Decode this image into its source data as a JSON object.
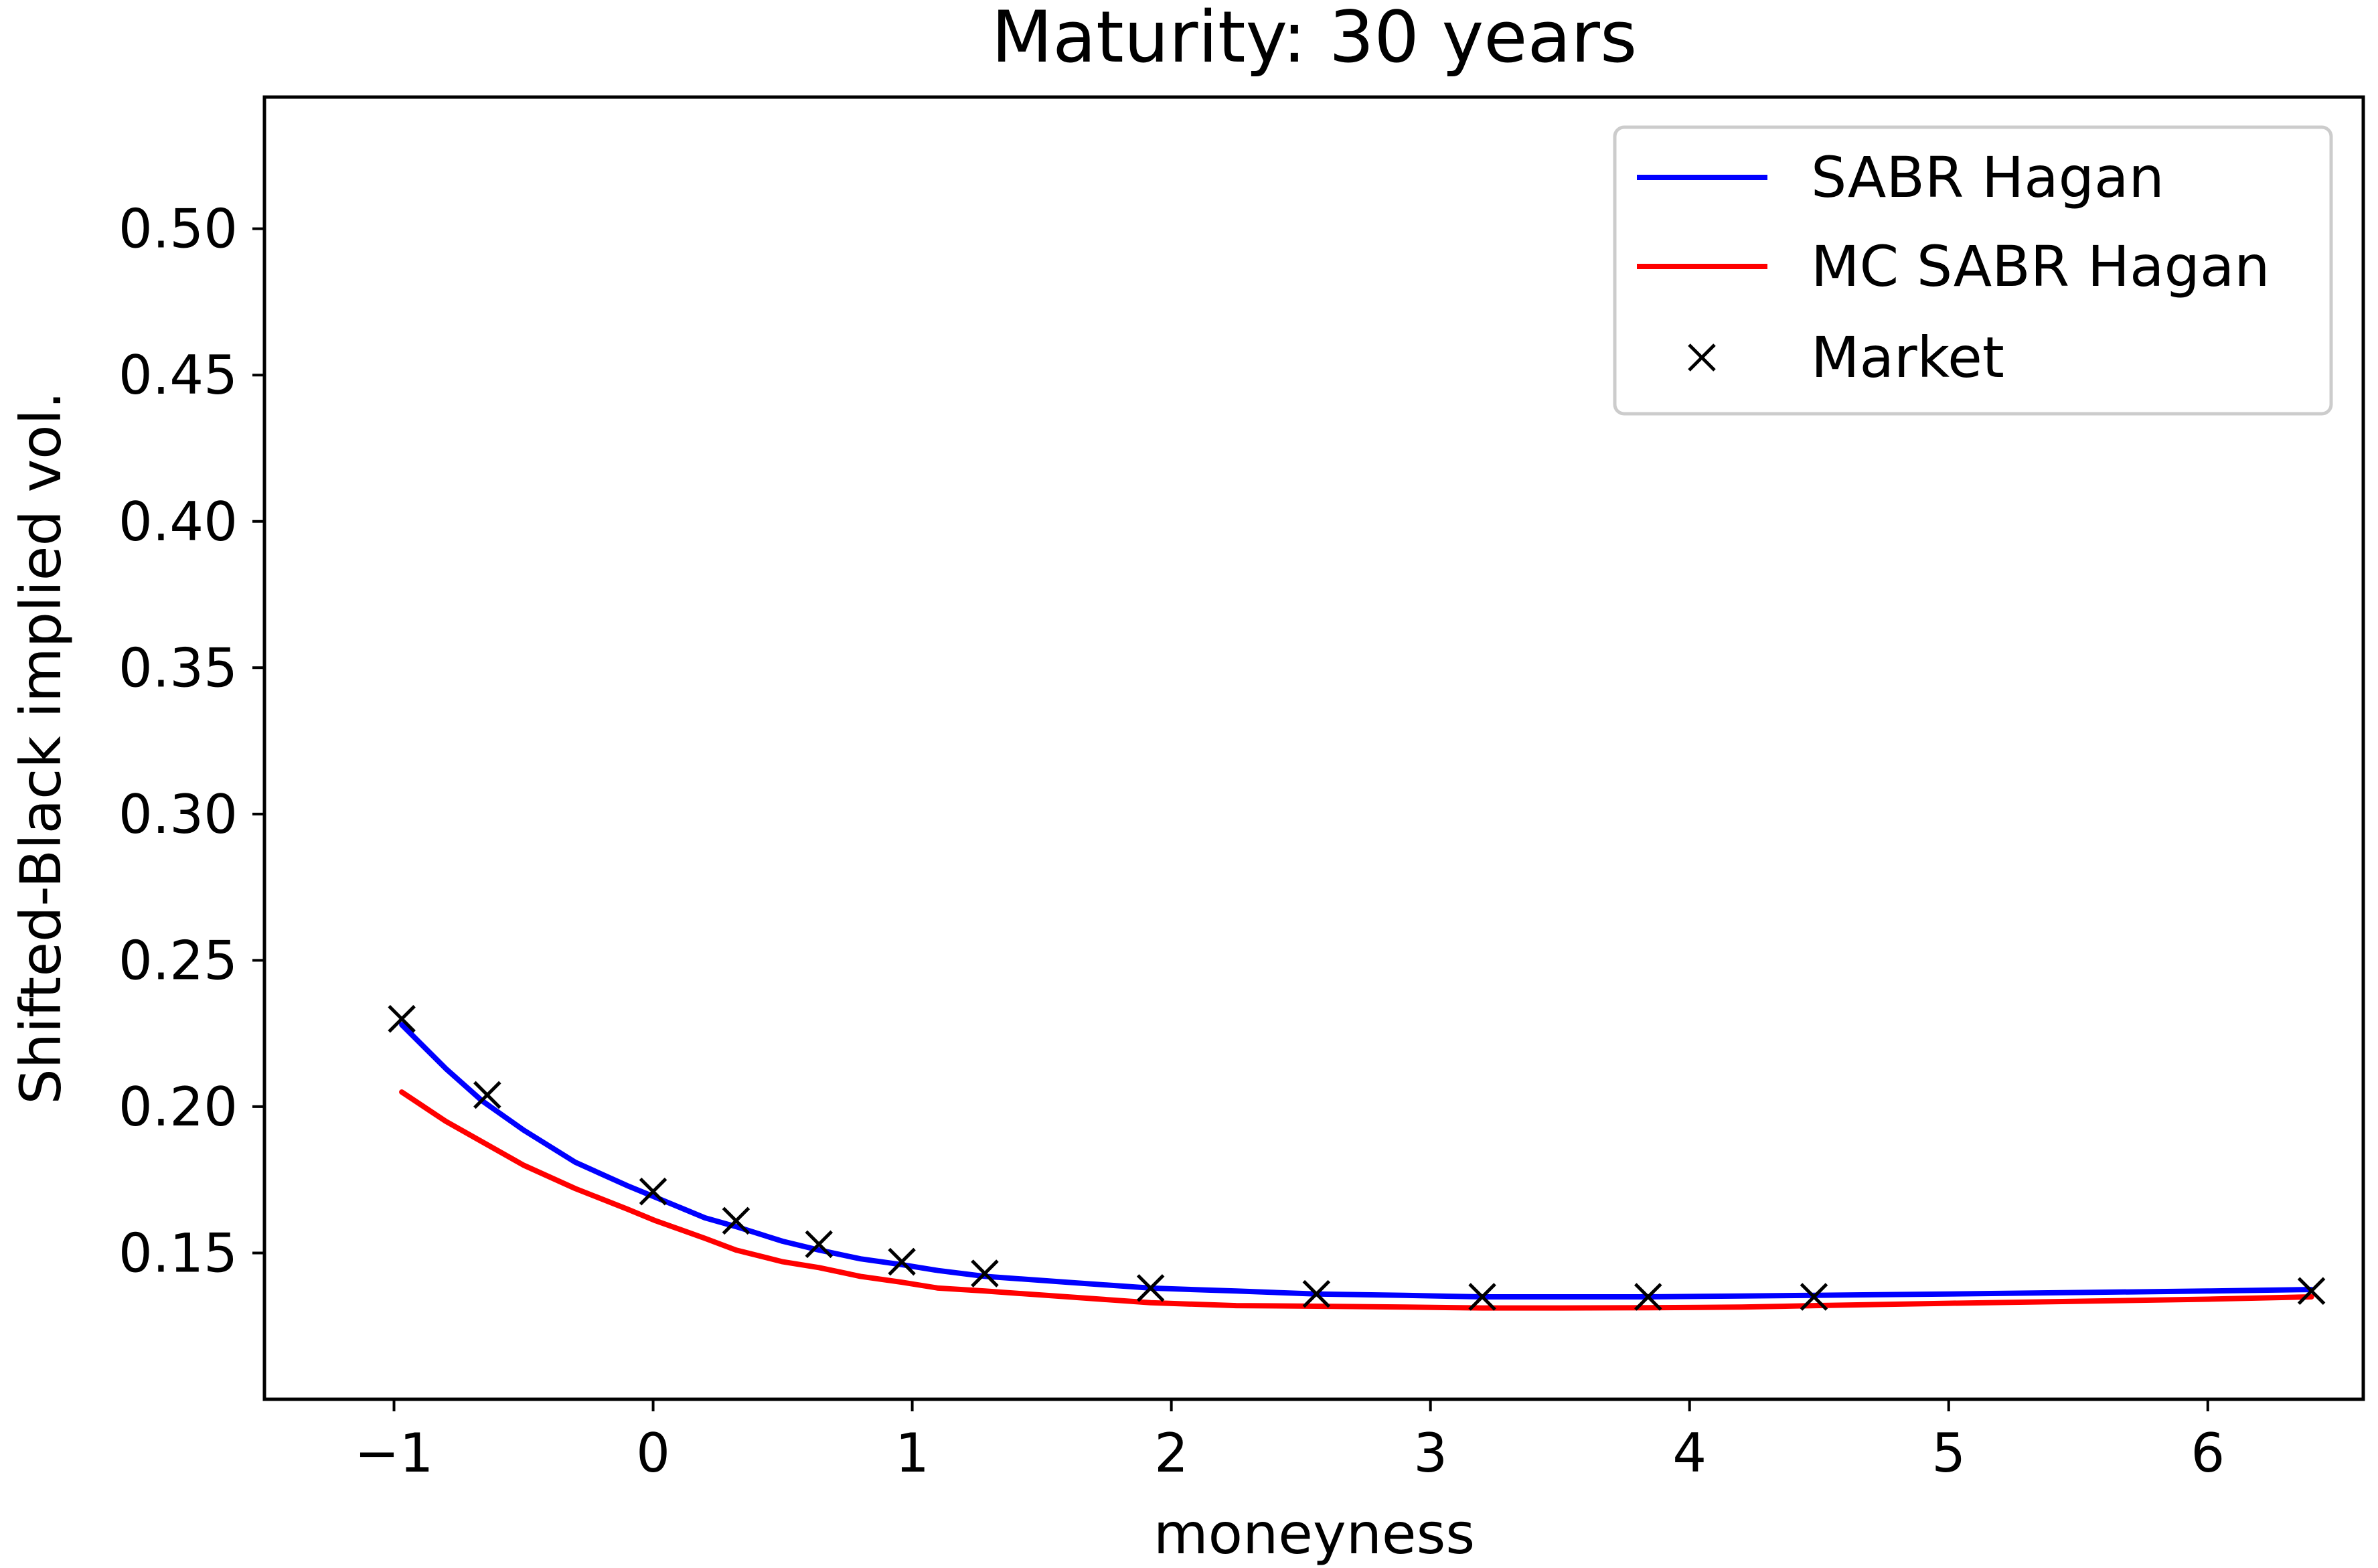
{
  "chart_data": {
    "type": "line",
    "title": "Maturity: 30 years",
    "xlabel": "moneyness",
    "ylabel": "Shifted-Black implied vol.",
    "xlim": [
      -1.5,
      6.6
    ],
    "ylim": [
      0.1,
      0.545
    ],
    "xticks": [
      -1,
      0,
      1,
      2,
      3,
      4,
      5,
      6
    ],
    "xtick_labels": [
      "−1",
      "0",
      "1",
      "2",
      "3",
      "4",
      "5",
      "6"
    ],
    "yticks": [
      0.15,
      0.2,
      0.25,
      0.3,
      0.35,
      0.4,
      0.45,
      0.5
    ],
    "ytick_labels": [
      "0.15",
      "0.20",
      "0.25",
      "0.30",
      "0.35",
      "0.40",
      "0.45",
      "0.50"
    ],
    "grid": false,
    "legend_position": "top-right",
    "series": [
      {
        "name": "SABR Hagan",
        "kind": "line",
        "color": "#0000ff",
        "x": [
          -0.97,
          -0.8,
          -0.66,
          -0.5,
          -0.3,
          -0.1,
          0.01,
          0.2,
          0.32,
          0.5,
          0.64,
          0.8,
          0.96,
          1.1,
          1.28,
          1.6,
          1.92,
          2.25,
          2.56,
          2.9,
          3.2,
          3.5,
          3.84,
          4.2,
          4.48,
          5.0,
          5.5,
          6.0,
          6.4
        ],
        "values": [
          0.228,
          0.213,
          0.202,
          0.192,
          0.181,
          0.173,
          0.169,
          0.162,
          0.159,
          0.154,
          0.151,
          0.148,
          0.146,
          0.144,
          0.142,
          0.14,
          0.138,
          0.137,
          0.136,
          0.1355,
          0.135,
          0.135,
          0.135,
          0.1353,
          0.1355,
          0.136,
          0.1365,
          0.137,
          0.1375
        ]
      },
      {
        "name": "MC SABR Hagan",
        "kind": "line",
        "color": "#ff0000",
        "x": [
          -0.97,
          -0.8,
          -0.66,
          -0.5,
          -0.3,
          -0.1,
          0.01,
          0.2,
          0.32,
          0.5,
          0.64,
          0.8,
          0.96,
          1.1,
          1.28,
          1.6,
          1.92,
          2.25,
          2.56,
          2.9,
          3.2,
          3.5,
          3.84,
          4.2,
          4.48,
          5.0,
          5.5,
          6.0,
          6.4
        ],
        "values": [
          0.205,
          0.195,
          0.188,
          0.18,
          0.172,
          0.165,
          0.161,
          0.155,
          0.151,
          0.147,
          0.145,
          0.142,
          0.14,
          0.138,
          0.137,
          0.135,
          0.133,
          0.132,
          0.1318,
          0.1315,
          0.1312,
          0.1312,
          0.1313,
          0.1315,
          0.132,
          0.1328,
          0.1335,
          0.1342,
          0.135
        ]
      },
      {
        "name": "Market",
        "kind": "marker",
        "marker": "x",
        "color": "#000000",
        "x": [
          -0.97,
          -0.64,
          0.0,
          0.32,
          0.64,
          0.96,
          1.28,
          1.92,
          2.56,
          3.2,
          3.84,
          4.48,
          6.4
        ],
        "values": [
          0.23,
          0.204,
          0.171,
          0.161,
          0.153,
          0.147,
          0.143,
          0.138,
          0.136,
          0.135,
          0.135,
          0.135,
          0.137
        ]
      }
    ]
  }
}
